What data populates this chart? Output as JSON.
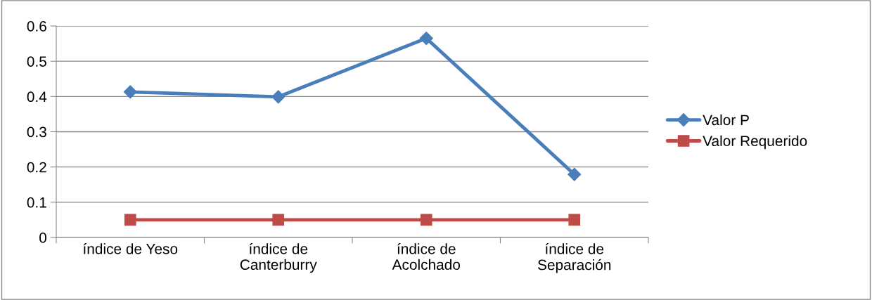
{
  "chart_data": {
    "type": "line",
    "categories": [
      "índice de Yeso",
      "índice de\nCanterburry",
      "índice de\nAcolchado",
      "índice de\nSeparación"
    ],
    "series": [
      {
        "name": "Valor P",
        "color": "#4a7ebb",
        "marker": "diamond",
        "values": [
          0.413,
          0.399,
          0.565,
          0.179
        ]
      },
      {
        "name": "Valor Requerido",
        "color": "#be4b48",
        "marker": "square",
        "values": [
          0.05,
          0.05,
          0.05,
          0.05
        ]
      }
    ],
    "ylim": [
      0,
      0.6
    ],
    "yticks": [
      0,
      0.1,
      0.2,
      0.3,
      0.4,
      0.5,
      0.6
    ],
    "grid": "y",
    "legend": "right",
    "line_style": "solid"
  }
}
